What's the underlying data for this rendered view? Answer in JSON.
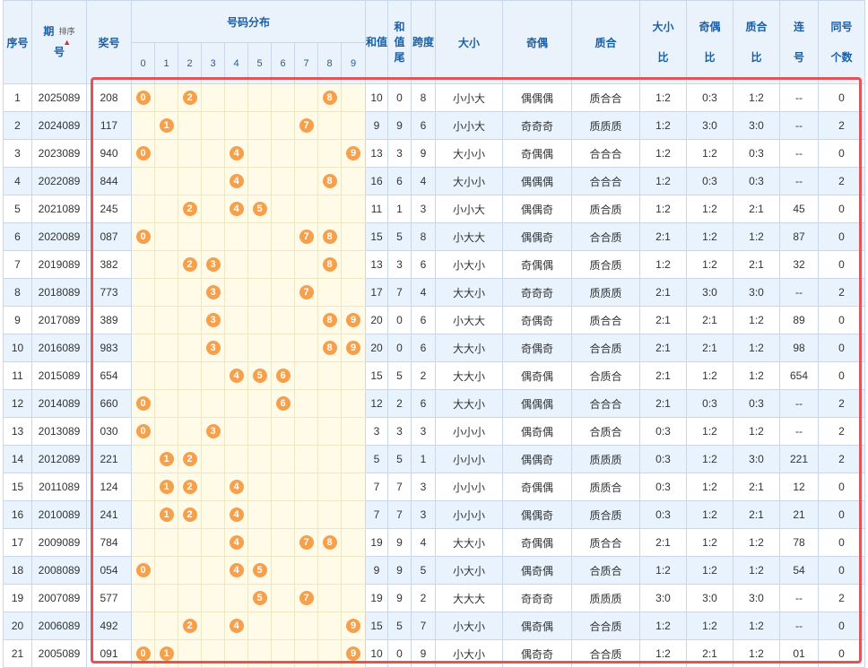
{
  "headers": {
    "seq": "序号",
    "period_line1": "期",
    "period_line2": "号",
    "sort_label": "排序",
    "prize": "奖号",
    "distribution": "号码分布",
    "sum": "和值",
    "sum_tail_line1": "和",
    "sum_tail_line2": "值",
    "sum_tail_line3": "尾",
    "span": "跨度",
    "big_small": "大小",
    "odd_even": "奇偶",
    "prime_comp": "质合",
    "bs_ratio_line1": "大小",
    "bs_ratio_line2": "比",
    "oe_ratio_line1": "奇偶",
    "oe_ratio_line2": "比",
    "pc_ratio_line1": "质合",
    "pc_ratio_line2": "比",
    "consec_line1": "连",
    "consec_line2": "号",
    "same_line1": "同号",
    "same_line2": "个数",
    "digits": [
      "0",
      "1",
      "2",
      "3",
      "4",
      "5",
      "6",
      "7",
      "8",
      "9"
    ]
  },
  "colors": {
    "ball": "#f4a04c",
    "highlight_border": "#e0555a",
    "header_bg": "#eaf2fb",
    "even_row_bg": "#e8f3fd",
    "dist_bg": "#fffbe8"
  },
  "rows": [
    {
      "seq": "1",
      "period": "2025089",
      "prize": "208",
      "balls": [
        "0",
        "",
        "2",
        "",
        "",
        "",
        "",
        "",
        "8",
        ""
      ],
      "sum": "10",
      "tail": "0",
      "span": "8",
      "bs": "小小大",
      "oe": "偶偶偶",
      "pc": "质合合",
      "bsr": "1:2",
      "oer": "0:3",
      "pcr": "1:2",
      "consec": "--",
      "same": "0"
    },
    {
      "seq": "2",
      "period": "2024089",
      "prize": "117",
      "balls": [
        "",
        "1",
        "",
        "",
        "",
        "",
        "",
        "7",
        "",
        ""
      ],
      "sum": "9",
      "tail": "9",
      "span": "6",
      "bs": "小小大",
      "oe": "奇奇奇",
      "pc": "质质质",
      "bsr": "1:2",
      "oer": "3:0",
      "pcr": "3:0",
      "consec": "--",
      "same": "2"
    },
    {
      "seq": "3",
      "period": "2023089",
      "prize": "940",
      "balls": [
        "0",
        "",
        "",
        "",
        "4",
        "",
        "",
        "",
        "",
        "9"
      ],
      "sum": "13",
      "tail": "3",
      "span": "9",
      "bs": "大小小",
      "oe": "奇偶偶",
      "pc": "合合合",
      "bsr": "1:2",
      "oer": "1:2",
      "pcr": "0:3",
      "consec": "--",
      "same": "0"
    },
    {
      "seq": "4",
      "period": "2022089",
      "prize": "844",
      "balls": [
        "",
        "",
        "",
        "",
        "4",
        "",
        "",
        "",
        "8",
        ""
      ],
      "sum": "16",
      "tail": "6",
      "span": "4",
      "bs": "大小小",
      "oe": "偶偶偶",
      "pc": "合合合",
      "bsr": "1:2",
      "oer": "0:3",
      "pcr": "0:3",
      "consec": "--",
      "same": "2"
    },
    {
      "seq": "5",
      "period": "2021089",
      "prize": "245",
      "balls": [
        "",
        "",
        "2",
        "",
        "4",
        "5",
        "",
        "",
        "",
        ""
      ],
      "sum": "11",
      "tail": "1",
      "span": "3",
      "bs": "小小大",
      "oe": "偶偶奇",
      "pc": "质合质",
      "bsr": "1:2",
      "oer": "1:2",
      "pcr": "2:1",
      "consec": "45",
      "same": "0"
    },
    {
      "seq": "6",
      "period": "2020089",
      "prize": "087",
      "balls": [
        "0",
        "",
        "",
        "",
        "",
        "",
        "",
        "7",
        "8",
        ""
      ],
      "sum": "15",
      "tail": "5",
      "span": "8",
      "bs": "小大大",
      "oe": "偶偶奇",
      "pc": "合合质",
      "bsr": "2:1",
      "oer": "1:2",
      "pcr": "1:2",
      "consec": "87",
      "same": "0"
    },
    {
      "seq": "7",
      "period": "2019089",
      "prize": "382",
      "balls": [
        "",
        "",
        "2",
        "3",
        "",
        "",
        "",
        "",
        "8",
        ""
      ],
      "sum": "13",
      "tail": "3",
      "span": "6",
      "bs": "小大小",
      "oe": "奇偶偶",
      "pc": "质合质",
      "bsr": "1:2",
      "oer": "1:2",
      "pcr": "2:1",
      "consec": "32",
      "same": "0"
    },
    {
      "seq": "8",
      "period": "2018089",
      "prize": "773",
      "balls": [
        "",
        "",
        "",
        "3",
        "",
        "",
        "",
        "7",
        "",
        ""
      ],
      "sum": "17",
      "tail": "7",
      "span": "4",
      "bs": "大大小",
      "oe": "奇奇奇",
      "pc": "质质质",
      "bsr": "2:1",
      "oer": "3:0",
      "pcr": "3:0",
      "consec": "--",
      "same": "2"
    },
    {
      "seq": "9",
      "period": "2017089",
      "prize": "389",
      "balls": [
        "",
        "",
        "",
        "3",
        "",
        "",
        "",
        "",
        "8",
        "9"
      ],
      "sum": "20",
      "tail": "0",
      "span": "6",
      "bs": "小大大",
      "oe": "奇偶奇",
      "pc": "质合合",
      "bsr": "2:1",
      "oer": "2:1",
      "pcr": "1:2",
      "consec": "89",
      "same": "0"
    },
    {
      "seq": "10",
      "period": "2016089",
      "prize": "983",
      "balls": [
        "",
        "",
        "",
        "3",
        "",
        "",
        "",
        "",
        "8",
        "9"
      ],
      "sum": "20",
      "tail": "0",
      "span": "6",
      "bs": "大大小",
      "oe": "奇偶奇",
      "pc": "合合质",
      "bsr": "2:1",
      "oer": "2:1",
      "pcr": "1:2",
      "consec": "98",
      "same": "0"
    },
    {
      "seq": "11",
      "period": "2015089",
      "prize": "654",
      "balls": [
        "",
        "",
        "",
        "",
        "4",
        "5",
        "6",
        "",
        "",
        ""
      ],
      "sum": "15",
      "tail": "5",
      "span": "2",
      "bs": "大大小",
      "oe": "偶奇偶",
      "pc": "合质合",
      "bsr": "2:1",
      "oer": "1:2",
      "pcr": "1:2",
      "consec": "654",
      "same": "0"
    },
    {
      "seq": "12",
      "period": "2014089",
      "prize": "660",
      "balls": [
        "0",
        "",
        "",
        "",
        "",
        "",
        "6",
        "",
        "",
        ""
      ],
      "sum": "12",
      "tail": "2",
      "span": "6",
      "bs": "大大小",
      "oe": "偶偶偶",
      "pc": "合合合",
      "bsr": "2:1",
      "oer": "0:3",
      "pcr": "0:3",
      "consec": "--",
      "same": "2"
    },
    {
      "seq": "13",
      "period": "2013089",
      "prize": "030",
      "balls": [
        "0",
        "",
        "",
        "3",
        "",
        "",
        "",
        "",
        "",
        ""
      ],
      "sum": "3",
      "tail": "3",
      "span": "3",
      "bs": "小小小",
      "oe": "偶奇偶",
      "pc": "合质合",
      "bsr": "0:3",
      "oer": "1:2",
      "pcr": "1:2",
      "consec": "--",
      "same": "2"
    },
    {
      "seq": "14",
      "period": "2012089",
      "prize": "221",
      "balls": [
        "",
        "1",
        "2",
        "",
        "",
        "",
        "",
        "",
        "",
        ""
      ],
      "sum": "5",
      "tail": "5",
      "span": "1",
      "bs": "小小小",
      "oe": "偶偶奇",
      "pc": "质质质",
      "bsr": "0:3",
      "oer": "1:2",
      "pcr": "3:0",
      "consec": "221",
      "same": "2"
    },
    {
      "seq": "15",
      "period": "2011089",
      "prize": "124",
      "balls": [
        "",
        "1",
        "2",
        "",
        "4",
        "",
        "",
        "",
        "",
        ""
      ],
      "sum": "7",
      "tail": "7",
      "span": "3",
      "bs": "小小小",
      "oe": "奇偶偶",
      "pc": "质质合",
      "bsr": "0:3",
      "oer": "1:2",
      "pcr": "2:1",
      "consec": "12",
      "same": "0"
    },
    {
      "seq": "16",
      "period": "2010089",
      "prize": "241",
      "balls": [
        "",
        "1",
        "2",
        "",
        "4",
        "",
        "",
        "",
        "",
        ""
      ],
      "sum": "7",
      "tail": "7",
      "span": "3",
      "bs": "小小小",
      "oe": "偶偶奇",
      "pc": "质合质",
      "bsr": "0:3",
      "oer": "1:2",
      "pcr": "2:1",
      "consec": "21",
      "same": "0"
    },
    {
      "seq": "17",
      "period": "2009089",
      "prize": "784",
      "balls": [
        "",
        "",
        "",
        "",
        "4",
        "",
        "",
        "7",
        "8",
        ""
      ],
      "sum": "19",
      "tail": "9",
      "span": "4",
      "bs": "大大小",
      "oe": "奇偶偶",
      "pc": "质合合",
      "bsr": "2:1",
      "oer": "1:2",
      "pcr": "1:2",
      "consec": "78",
      "same": "0"
    },
    {
      "seq": "18",
      "period": "2008089",
      "prize": "054",
      "balls": [
        "0",
        "",
        "",
        "",
        "4",
        "5",
        "",
        "",
        "",
        ""
      ],
      "sum": "9",
      "tail": "9",
      "span": "5",
      "bs": "小大小",
      "oe": "偶奇偶",
      "pc": "合质合",
      "bsr": "1:2",
      "oer": "1:2",
      "pcr": "1:2",
      "consec": "54",
      "same": "0"
    },
    {
      "seq": "19",
      "period": "2007089",
      "prize": "577",
      "balls": [
        "",
        "",
        "",
        "",
        "",
        "5",
        "",
        "7",
        "",
        ""
      ],
      "sum": "19",
      "tail": "9",
      "span": "2",
      "bs": "大大大",
      "oe": "奇奇奇",
      "pc": "质质质",
      "bsr": "3:0",
      "oer": "3:0",
      "pcr": "3:0",
      "consec": "--",
      "same": "2"
    },
    {
      "seq": "20",
      "period": "2006089",
      "prize": "492",
      "balls": [
        "",
        "",
        "2",
        "",
        "4",
        "",
        "",
        "",
        "",
        "9"
      ],
      "sum": "15",
      "tail": "5",
      "span": "7",
      "bs": "小大小",
      "oe": "偶奇偶",
      "pc": "合合质",
      "bsr": "1:2",
      "oer": "1:2",
      "pcr": "1:2",
      "consec": "--",
      "same": "0"
    },
    {
      "seq": "21",
      "period": "2005089",
      "prize": "091",
      "balls": [
        "0",
        "1",
        "",
        "",
        "",
        "",
        "",
        "",
        "",
        "9"
      ],
      "sum": "10",
      "tail": "0",
      "span": "9",
      "bs": "小大小",
      "oe": "偶奇奇",
      "pc": "合合质",
      "bsr": "1:2",
      "oer": "2:1",
      "pcr": "1:2",
      "consec": "01",
      "same": "0"
    }
  ]
}
